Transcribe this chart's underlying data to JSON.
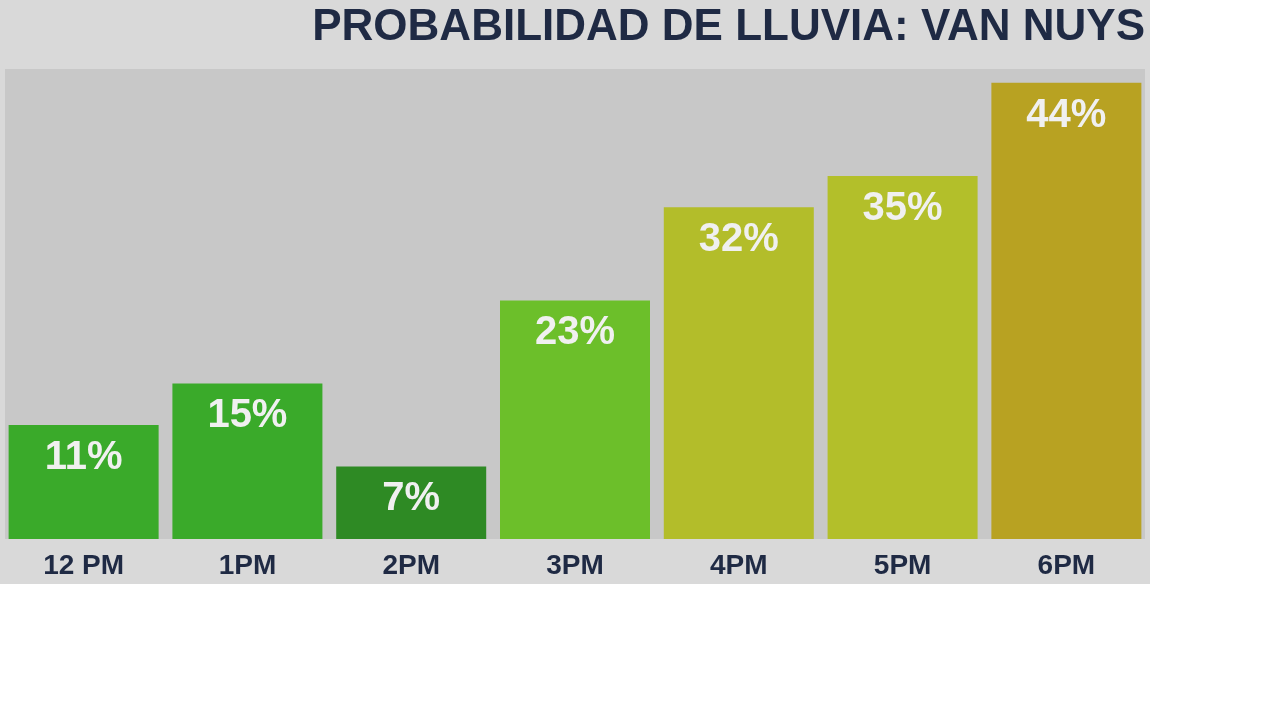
{
  "chart_data": {
    "type": "bar",
    "title": "PROBABILIDAD DE LLUVIA: VAN NUYS",
    "categories": [
      "12 PM",
      "1PM",
      "2PM",
      "3PM",
      "4PM",
      "5PM",
      "6PM"
    ],
    "values": [
      11,
      15,
      7,
      23,
      32,
      35,
      44
    ],
    "colors": [
      "#3aaa2a",
      "#3aaa2a",
      "#2e8a24",
      "#6cbf2a",
      "#b3bd2a",
      "#b3bf2a",
      "#b8a222"
    ],
    "value_labels": [
      "11%",
      "15%",
      "7%",
      "23%",
      "32%",
      "35%",
      "44%"
    ]
  }
}
